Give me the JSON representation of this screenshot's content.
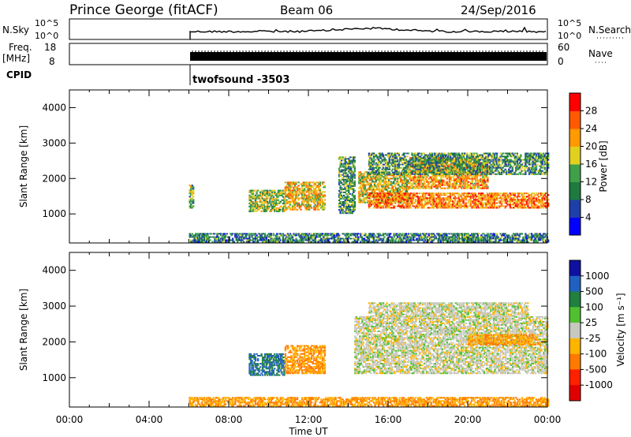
{
  "header": {
    "station": "Prince George (fitACF)",
    "beam": "Beam 06",
    "date": "24/Sep/2016"
  },
  "panels": {
    "nsky_label": "N.Sky",
    "nsky_ticks": [
      "10^5",
      "10^0"
    ],
    "nsearch_label": "N.Search",
    "freq_label_1": "Freq.",
    "freq_label_2": "[MHz]",
    "freq_ticks": [
      "18",
      "8"
    ],
    "nave_label": "Nave",
    "nave_ticks": [
      "60",
      "0"
    ],
    "cpid_label": "CPID",
    "cpid_value": "twofsound -3503"
  },
  "colorbars": {
    "power": {
      "label": "Power [dB]",
      "ticks": [
        "4",
        "8",
        "12",
        "16",
        "20",
        "24",
        "28"
      ],
      "colors": [
        "#0000ff",
        "#1f3fa8",
        "#1f7a3f",
        "#3fa04a",
        "#e0d020",
        "#ff9a00",
        "#ff5a00",
        "#ff0000"
      ]
    },
    "velocity": {
      "label": "Velocity [m s⁻¹]",
      "ticks": [
        "1000",
        "500",
        "100",
        "25",
        "-25",
        "-100",
        "-500",
        "-1000"
      ],
      "colors": [
        "#1010a0",
        "#2060c0",
        "#208040",
        "#50c030",
        "#c8c8c0",
        "#ffb400",
        "#ff7a00",
        "#ff2000",
        "#e00000"
      ]
    }
  },
  "chart_data": [
    {
      "type": "heatmap",
      "title": "",
      "xlabel": "",
      "ylabel": "Slant Range [km]",
      "xlim": [
        0,
        24
      ],
      "ylim": [
        180,
        4500
      ],
      "yticks": [
        "1000",
        "2000",
        "3000",
        "4000"
      ],
      "colorbar_label": "Power [dB]",
      "regions": [
        {
          "x0": 6.0,
          "x1": 24.0,
          "y0": 190,
          "y1": 450,
          "value": 10
        },
        {
          "x0": 6.0,
          "x1": 6.2,
          "y0": 1150,
          "y1": 1800,
          "value": 14
        },
        {
          "x0": 9.0,
          "x1": 10.8,
          "y0": 1050,
          "y1": 1650,
          "value": 16
        },
        {
          "x0": 10.8,
          "x1": 12.8,
          "y0": 1100,
          "y1": 1900,
          "value": 20
        },
        {
          "x0": 13.5,
          "x1": 14.3,
          "y0": 1000,
          "y1": 2600,
          "value": 12
        },
        {
          "x0": 14.5,
          "x1": 17.0,
          "y0": 1300,
          "y1": 2200,
          "value": 18
        },
        {
          "x0": 15.0,
          "x1": 24.0,
          "y0": 1150,
          "y1": 1600,
          "value": 24
        },
        {
          "x0": 17.0,
          "x1": 21.0,
          "y0": 1700,
          "y1": 2600,
          "value": 22
        },
        {
          "x0": 15.0,
          "x1": 24.0,
          "y0": 2100,
          "y1": 2700,
          "value": 12
        }
      ]
    },
    {
      "type": "heatmap",
      "title": "",
      "xlabel": "Time UT",
      "ylabel": "Slant Range [km]",
      "xlim": [
        0,
        24
      ],
      "ylim": [
        180,
        4500
      ],
      "xticks": [
        "00:00",
        "04:00",
        "08:00",
        "12:00",
        "16:00",
        "20:00",
        "00:00"
      ],
      "yticks": [
        "1000",
        "2000",
        "3000",
        "4000"
      ],
      "colorbar_label": "Velocity [m s⁻¹]",
      "regions": [
        {
          "x0": 6.0,
          "x1": 24.0,
          "y0": 190,
          "y1": 450,
          "value": -100
        },
        {
          "x0": 9.0,
          "x1": 10.8,
          "y0": 1050,
          "y1": 1650,
          "value": 100
        },
        {
          "x0": 10.8,
          "x1": 12.8,
          "y0": 1100,
          "y1": 1900,
          "value": -100
        },
        {
          "x0": 14.3,
          "x1": 24.0,
          "y0": 1100,
          "y1": 2700,
          "value": 0
        },
        {
          "x0": 15.0,
          "x1": 23.0,
          "y0": 2700,
          "y1": 3100,
          "value": 0
        },
        {
          "x0": 20.0,
          "x1": 23.5,
          "y0": 1900,
          "y1": 2200,
          "value": -100
        }
      ]
    }
  ]
}
